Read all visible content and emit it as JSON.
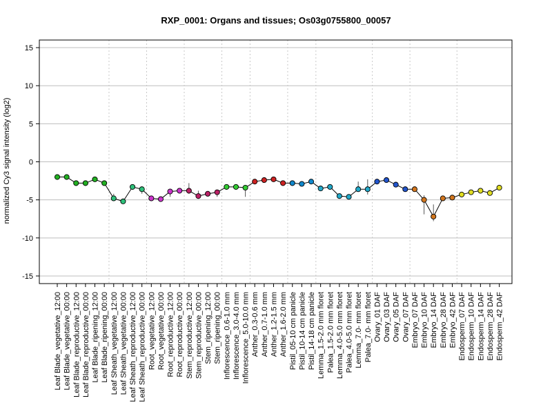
{
  "chart_data": {
    "type": "line",
    "title": "RXP_0001: Organs and tissues; Os03g0755800_00057",
    "ylabel": "normalized Cy3 signal intensity (log2)",
    "xlabel": "",
    "ylim": [
      -16,
      16
    ],
    "yticks": [
      -15,
      -10,
      -5,
      0,
      5,
      10,
      15
    ],
    "grid": true,
    "categories": [
      "Leaf Blade_vegetative_12:00",
      "Leaf Blade_vegetative_00:00",
      "Leaf Blade_reproductive_12:00",
      "Leaf Blade_reproductive_00:00",
      "Leaf Blade_ripening_12:00",
      "Leaf Blade_ripening_00:00",
      "Leaf Sheath_vegetative_12:00",
      "Leaf Sheath_vegetative_00:00",
      "Leaf Sheath_reproductive_12:00",
      "Leaf Sheath_reproductive_00:00",
      "Root_vegetative_12:00",
      "Root_vegetative_00:00",
      "Root_reproductive_12:00",
      "Root_reproductive_00:00",
      "Stem_reproductive_12:00",
      "Stem_reproductive_00:00",
      "Stem_ripening_12:00",
      "Stem_ripening_00:00",
      "Inflorescence_0.6-1.0 mm",
      "Inflorescence_3.0-4.0 mm",
      "Inflorescence_5.0-10.0 mm",
      "Anther_0.3-0.6 mm",
      "Anther_0.7-1.0 mm",
      "Anther_1.2-1.5 mm",
      "Anther_1.6-2.0 mm",
      "Pistil_05-10 cm panicle",
      "Pistil_10-14 cm panicle",
      "Pistil_14-18 cm panicle",
      "Lemma_1.5-2.0 mm floret",
      "Palea_1.5-2.0 mm floret",
      "Lemma_4.0-5.0 mm floret",
      "Palea_4.0-5.0 mm floret",
      "Lemma_7.0- mm floret",
      "Palea_7.0- mm floret",
      "Ovary_01 DAF",
      "Ovary_03 DAF",
      "Ovary_05 DAF",
      "Ovary_07 DAF",
      "Embryo_07 DAF",
      "Embryo_10 DAF",
      "Embryo_14 DAF",
      "Embryo_28 DAF",
      "Embryo_42 DAF",
      "Endosperm_07 DAF",
      "Endosperm_10 DAF",
      "Endosperm_14 DAF",
      "Endosperm_28 DAF",
      "Endosperm_42 DAF"
    ],
    "values": [
      -2.0,
      -2.0,
      -2.8,
      -2.8,
      -2.3,
      -2.8,
      -4.8,
      -5.2,
      -3.3,
      -3.6,
      -4.8,
      -4.9,
      -3.9,
      -3.8,
      -3.8,
      -4.5,
      -4.2,
      -4.0,
      -3.3,
      -3.3,
      -3.4,
      -2.6,
      -2.4,
      -2.3,
      -2.8,
      -2.8,
      -2.9,
      -2.6,
      -3.5,
      -3.3,
      -4.5,
      -4.6,
      -3.6,
      -3.6,
      -2.6,
      -2.4,
      -3.0,
      -3.6,
      -3.6,
      -5.0,
      -7.2,
      -4.8,
      -4.7,
      -4.3,
      -4.0,
      -3.8,
      -4.1,
      -3.4
    ],
    "error_low": [
      -2.0,
      -2.0,
      -2.8,
      -2.8,
      -2.3,
      -2.8,
      -5.0,
      -5.2,
      -3.3,
      -4.2,
      -4.8,
      -4.9,
      -4.6,
      -3.8,
      -4.2,
      -4.8,
      -4.3,
      -4.6,
      -3.3,
      -3.3,
      -4.6,
      -2.6,
      -2.4,
      -2.3,
      -2.8,
      -2.8,
      -2.9,
      -2.6,
      -3.5,
      -3.3,
      -4.5,
      -4.6,
      -3.6,
      -4.3,
      -2.6,
      -2.4,
      -3.0,
      -3.6,
      -3.6,
      -6.9,
      -7.8,
      -4.8,
      -4.7,
      -4.3,
      -4.0,
      -3.8,
      -4.1,
      -3.4
    ],
    "error_high": [
      -2.0,
      -2.0,
      -2.8,
      -2.8,
      -2.3,
      -2.8,
      -4.2,
      -5.2,
      -3.3,
      -3.4,
      -4.8,
      -4.9,
      -3.9,
      -3.8,
      -2.8,
      -3.8,
      -4.2,
      -3.8,
      -3.3,
      -3.3,
      -3.1,
      -2.6,
      -2.4,
      -2.3,
      -2.8,
      -2.8,
      -2.9,
      -2.6,
      -3.5,
      -3.3,
      -4.5,
      -4.6,
      -2.6,
      -2.3,
      -2.6,
      -2.4,
      -3.0,
      -3.6,
      -3.6,
      -4.4,
      -5.6,
      -4.8,
      -4.7,
      -4.3,
      -4.0,
      -3.8,
      -4.1,
      -3.4
    ],
    "colors": [
      "#22b022",
      "#22b022",
      "#22b022",
      "#22b022",
      "#22b022",
      "#22b022",
      "#2ec07a",
      "#2ec07a",
      "#2ec07a",
      "#2ec07a",
      "#cc33cc",
      "#cc33cc",
      "#cc33cc",
      "#cc33cc",
      "#bb2266",
      "#bb2266",
      "#bb2266",
      "#bb2266",
      "#33cc33",
      "#33cc33",
      "#33cc33",
      "#cc2222",
      "#cc2222",
      "#cc2222",
      "#cc2222",
      "#1188cc",
      "#1188cc",
      "#1188cc",
      "#22a8c8",
      "#22a8c8",
      "#22a8c8",
      "#22a8c8",
      "#22a8c8",
      "#22a8c8",
      "#2255cc",
      "#2255cc",
      "#2255cc",
      "#2255cc",
      "#d2761e",
      "#d2761e",
      "#d2761e",
      "#d2761e",
      "#d2761e",
      "#e0dd22",
      "#e0dd22",
      "#e0dd22",
      "#e0dd22",
      "#e0dd22"
    ],
    "vertical_separators_after_index": [
      5,
      9,
      13,
      17,
      20,
      24,
      27,
      33,
      37,
      42
    ]
  }
}
